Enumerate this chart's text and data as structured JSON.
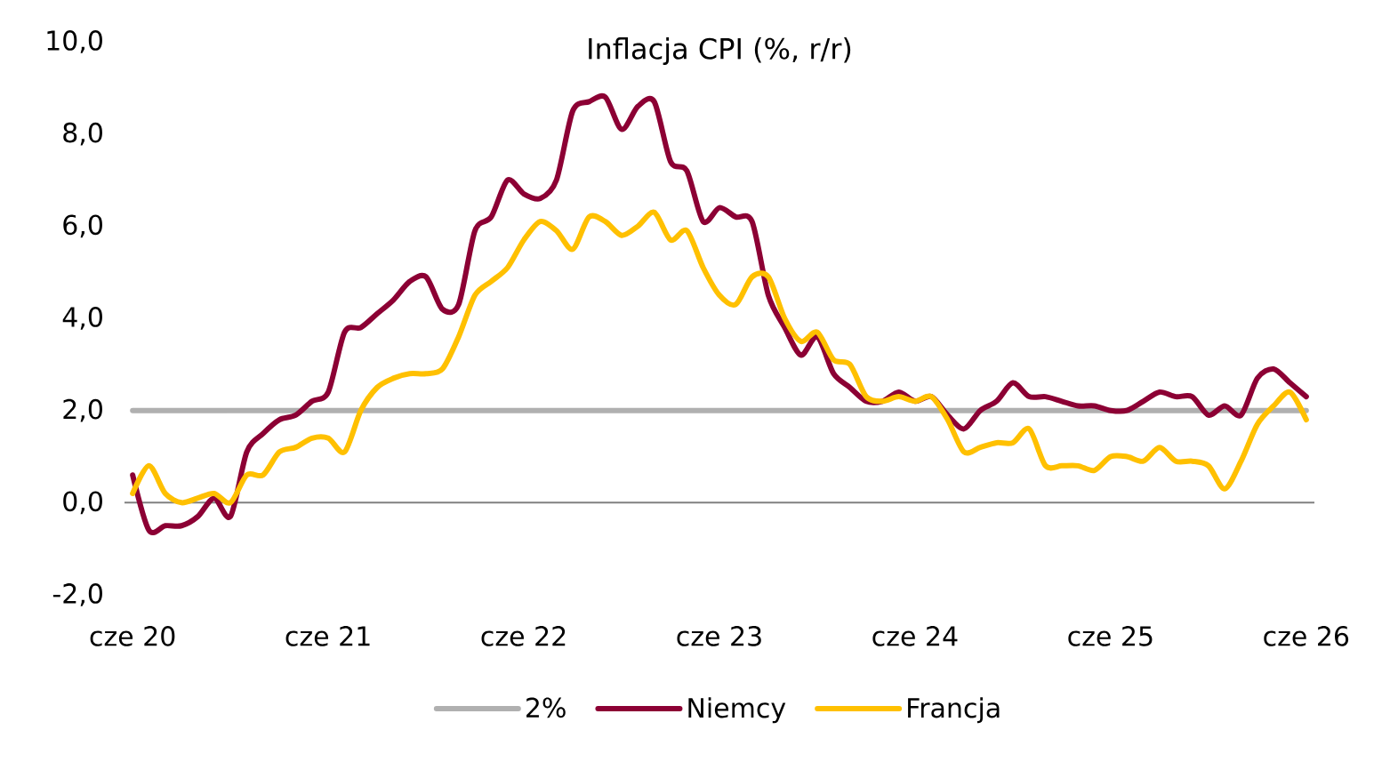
{
  "chart_data": {
    "type": "line",
    "title": "Inflacja CPI (%, r/r)",
    "categories": [
      "cze 20",
      null,
      null,
      null,
      null,
      null,
      null,
      null,
      null,
      null,
      null,
      null,
      "cze 21",
      null,
      null,
      null,
      null,
      null,
      null,
      null,
      null,
      null,
      null,
      null,
      "cze 22",
      null,
      null,
      null,
      null,
      null,
      null,
      null,
      null,
      null,
      null,
      null,
      "cze 23",
      null,
      null,
      null,
      null,
      null,
      null,
      null,
      null,
      null,
      null,
      null,
      "cze 24",
      null,
      null,
      null,
      null,
      null,
      null,
      null,
      null,
      null,
      null,
      null,
      "cze 25",
      null,
      null,
      null,
      null,
      null,
      null,
      null,
      null,
      null,
      null,
      null,
      "cze 26"
    ],
    "series": [
      {
        "name": "Niemcy",
        "color": "#8c0034",
        "values": [
          0.6,
          -0.6,
          -0.5,
          -0.5,
          -0.3,
          0.1,
          -0.3,
          1.1,
          1.5,
          1.8,
          1.9,
          2.2,
          2.4,
          3.7,
          3.8,
          4.1,
          4.4,
          4.8,
          4.9,
          4.2,
          4.3,
          5.9,
          6.2,
          7.0,
          6.7,
          6.6,
          7.0,
          8.5,
          8.7,
          8.8,
          8.1,
          8.6,
          8.7,
          7.4,
          7.2,
          6.1,
          6.4,
          6.2,
          6.1,
          4.5,
          3.8,
          3.2,
          3.6,
          2.8,
          2.5,
          2.2,
          2.2,
          2.4,
          2.2,
          2.3,
          1.9,
          1.6,
          2.0,
          2.2,
          2.6,
          2.3,
          2.3,
          2.2,
          2.1,
          2.1,
          2.0,
          2.0,
          2.2,
          2.4,
          2.3,
          2.3,
          1.9,
          2.1,
          1.9,
          2.7,
          2.9,
          2.6,
          2.3
        ]
      },
      {
        "name": "Francja",
        "color": "#ffc000",
        "values": [
          0.2,
          0.8,
          0.2,
          0.0,
          0.1,
          0.2,
          0.0,
          0.6,
          0.6,
          1.1,
          1.2,
          1.4,
          1.4,
          1.1,
          2.0,
          2.5,
          2.7,
          2.8,
          2.8,
          2.9,
          3.6,
          4.5,
          4.8,
          5.1,
          5.7,
          6.1,
          5.9,
          5.5,
          6.2,
          6.1,
          5.8,
          6.0,
          6.3,
          5.7,
          5.9,
          5.1,
          4.5,
          4.3,
          4.9,
          4.9,
          4.0,
          3.5,
          3.7,
          3.1,
          3.0,
          2.3,
          2.2,
          2.3,
          2.2,
          2.3,
          1.8,
          1.1,
          1.2,
          1.3,
          1.3,
          1.6,
          0.8,
          0.8,
          0.8,
          0.7,
          1.0,
          1.0,
          0.9,
          1.2,
          0.9,
          0.9,
          0.8,
          0.3,
          0.9,
          1.7,
          2.1,
          2.4,
          1.8
        ]
      },
      {
        "name": "2%",
        "color": "#b0b0b0",
        "values": [
          2,
          2,
          2,
          2,
          2,
          2,
          2,
          2,
          2,
          2,
          2,
          2,
          2,
          2,
          2,
          2,
          2,
          2,
          2,
          2,
          2,
          2,
          2,
          2,
          2,
          2,
          2,
          2,
          2,
          2,
          2,
          2,
          2,
          2,
          2,
          2,
          2,
          2,
          2,
          2,
          2,
          2,
          2,
          2,
          2,
          2,
          2,
          2,
          2,
          2,
          2,
          2,
          2,
          2,
          2,
          2,
          2,
          2,
          2,
          2,
          2,
          2,
          2,
          2,
          2,
          2,
          2,
          2,
          2,
          2,
          2,
          2,
          2
        ]
      }
    ],
    "ylim": [
      -2,
      10
    ],
    "yticks": [
      {
        "value": -2,
        "label": "-2,0"
      },
      {
        "value": 0,
        "label": "0,0"
      },
      {
        "value": 2,
        "label": "2,0"
      },
      {
        "value": 4,
        "label": "4,0"
      },
      {
        "value": 6,
        "label": "6,0"
      },
      {
        "value": 8,
        "label": "8,0"
      },
      {
        "value": 10,
        "label": "10,0"
      }
    ],
    "legend": "bottom"
  }
}
